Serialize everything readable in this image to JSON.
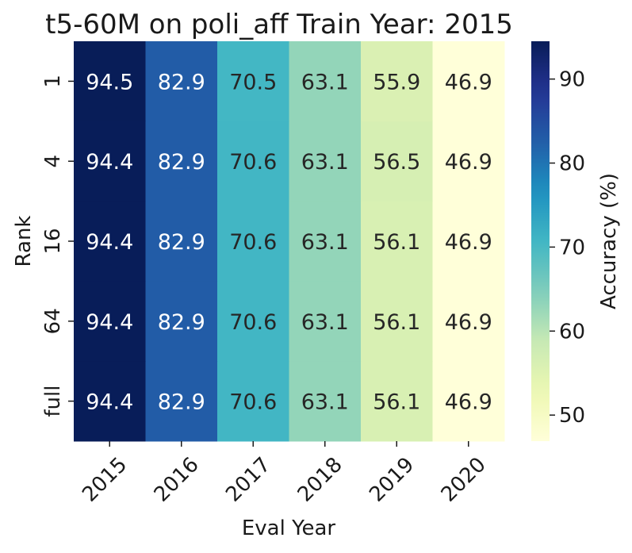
{
  "chart_data": {
    "type": "heatmap",
    "title": "t5-60M on poli_aff Train Year: 2015",
    "xlabel": "Eval Year",
    "ylabel": "Rank",
    "x_categories": [
      "2015",
      "2016",
      "2017",
      "2018",
      "2019",
      "2020"
    ],
    "y_categories": [
      "1",
      "4",
      "16",
      "64",
      "full"
    ],
    "values": [
      [
        94.5,
        82.9,
        70.5,
        63.1,
        55.9,
        46.9
      ],
      [
        94.4,
        82.9,
        70.6,
        63.1,
        56.5,
        46.9
      ],
      [
        94.4,
        82.9,
        70.6,
        63.1,
        56.1,
        46.9
      ],
      [
        94.4,
        82.9,
        70.6,
        63.1,
        56.1,
        46.9
      ],
      [
        94.4,
        82.9,
        70.6,
        63.1,
        56.1,
        46.9
      ]
    ],
    "colorbar": {
      "label": "Accuracy (%)",
      "range": [
        46.9,
        94.5
      ],
      "ticks": [
        50,
        60,
        70,
        80,
        90
      ],
      "colormap": "YlGnBu"
    },
    "annotations": true
  }
}
